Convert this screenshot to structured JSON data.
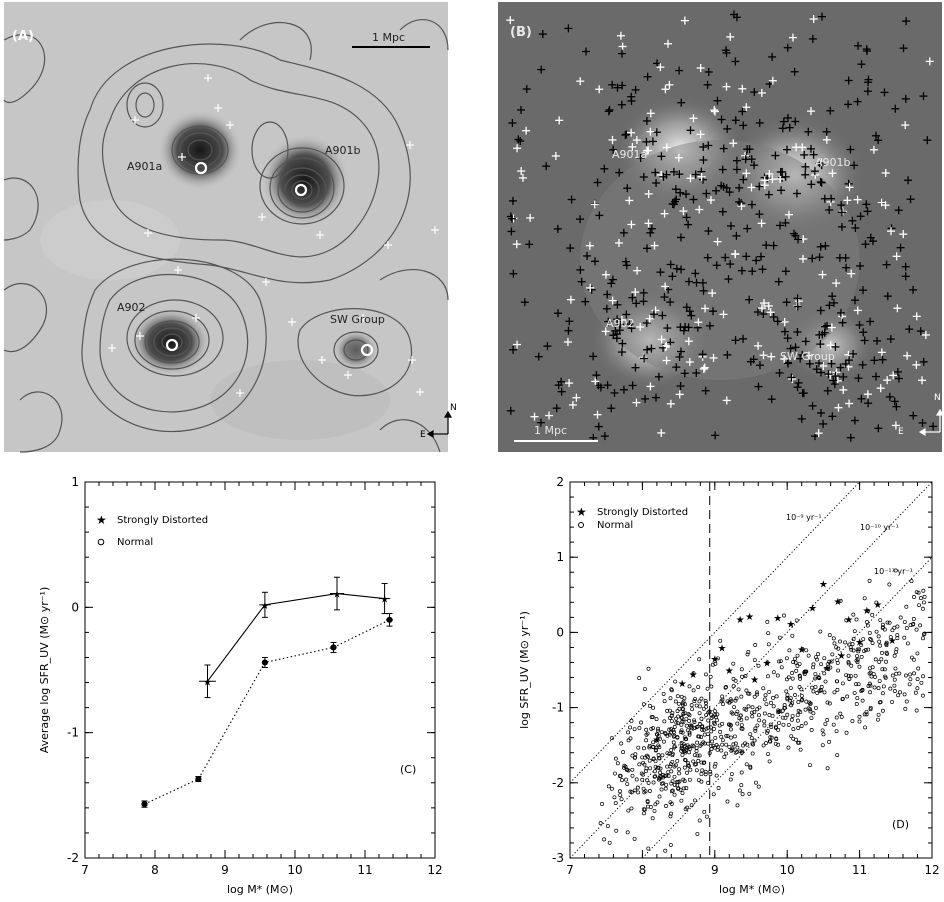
{
  "panel_a": {
    "tag": "(A)",
    "scale_label": "1 Mpc",
    "cluster_labels": [
      "A901a",
      "A901b",
      "A902",
      "SW Group"
    ],
    "compass_n": "N",
    "compass_e": "E"
  },
  "panel_b": {
    "tag": "(B)",
    "scale_label": "1 Mpc",
    "cluster_labels": [
      "A901a",
      "A901b",
      "A902",
      "SW Group"
    ],
    "compass_n": "N",
    "compass_e": "E"
  },
  "chart_data": [
    {
      "panel": "C",
      "type": "line",
      "corner_label": "(C)",
      "xlabel": "log M* (M⊙)",
      "ylabel": "Average log SFR_UV (M⊙ yr⁻¹)",
      "xlim": [
        7,
        12
      ],
      "ylim": [
        -2,
        1
      ],
      "xticks": [
        7,
        8,
        9,
        10,
        11,
        12
      ],
      "yticks": [
        -2,
        -1,
        0,
        1
      ],
      "legend_placement": "top-left",
      "series": [
        {
          "name": "Strongly Distorted",
          "marker": "star",
          "line": "solid",
          "x": [
            8.75,
            9.57,
            10.6,
            11.28
          ],
          "y": [
            -0.59,
            0.02,
            0.11,
            0.07
          ],
          "xerr": [
            0.12,
            0.08,
            0.1,
            0.08
          ],
          "yerr": [
            0.13,
            0.1,
            0.13,
            0.12
          ]
        },
        {
          "name": "Normal",
          "marker": "circle",
          "line": "dotted",
          "x": [
            7.85,
            8.62,
            9.57,
            10.55,
            11.35
          ],
          "y": [
            -1.57,
            -1.37,
            -0.44,
            -0.32,
            -0.1
          ],
          "xerr": [
            0.04,
            0.04,
            0.03,
            0.04,
            0.05
          ],
          "yerr": [
            0.025,
            0.02,
            0.04,
            0.04,
            0.05
          ]
        }
      ]
    },
    {
      "panel": "D",
      "type": "scatter",
      "corner_label": "(D)",
      "xlabel": "log M* (M⊙)",
      "ylabel": "log SFR_UV (M⊙ yr⁻¹)",
      "xlim": [
        7,
        12
      ],
      "ylim": [
        -3,
        2
      ],
      "xticks": [
        7,
        8,
        9,
        10,
        11,
        12
      ],
      "yticks": [
        -3,
        -2,
        -1,
        0,
        1,
        2
      ],
      "legend_placement": "top-left",
      "vertical_line_x": 8.93,
      "ssfr_lines": [
        {
          "log_ssfr": -9,
          "label": "10⁻⁹ yr⁻¹"
        },
        {
          "log_ssfr": -10,
          "label": "10⁻¹⁰ yr⁻¹"
        },
        {
          "log_ssfr": -11,
          "label": "10⁻¹¹ yr⁻¹"
        }
      ],
      "series": [
        {
          "name": "Strongly Distorted",
          "marker": "star"
        },
        {
          "name": "Normal",
          "marker": "circle"
        }
      ],
      "distorted_points": [
        {
          "x": 8.7,
          "y": -0.55
        },
        {
          "x": 8.55,
          "y": -0.67
        },
        {
          "x": 8.2,
          "y": -1.42
        },
        {
          "x": 9.0,
          "y": -0.35
        },
        {
          "x": 9.1,
          "y": -0.2
        },
        {
          "x": 9.2,
          "y": -0.5
        },
        {
          "x": 9.35,
          "y": 0.18
        },
        {
          "x": 9.48,
          "y": 0.22
        },
        {
          "x": 9.55,
          "y": -0.62
        },
        {
          "x": 9.72,
          "y": -0.4
        },
        {
          "x": 9.87,
          "y": 0.2
        },
        {
          "x": 10.05,
          "y": 0.12
        },
        {
          "x": 10.2,
          "y": -0.22
        },
        {
          "x": 10.35,
          "y": 0.33
        },
        {
          "x": 10.5,
          "y": 0.65
        },
        {
          "x": 10.7,
          "y": 0.42
        },
        {
          "x": 10.85,
          "y": 0.18
        },
        {
          "x": 11.0,
          "y": -0.12
        },
        {
          "x": 11.1,
          "y": 0.3
        },
        {
          "x": 11.25,
          "y": 0.38
        },
        {
          "x": 11.45,
          "y": -0.1
        },
        {
          "x": 10.55,
          "y": -0.47
        },
        {
          "x": 10.75,
          "y": -0.3
        }
      ],
      "normal_cloud": {
        "count": 900,
        "x_range": [
          7.2,
          11.9
        ],
        "relation": "y = -1.6 + 0.45 * (x - 8.5)",
        "scatter_dex": 0.45
      }
    }
  ]
}
